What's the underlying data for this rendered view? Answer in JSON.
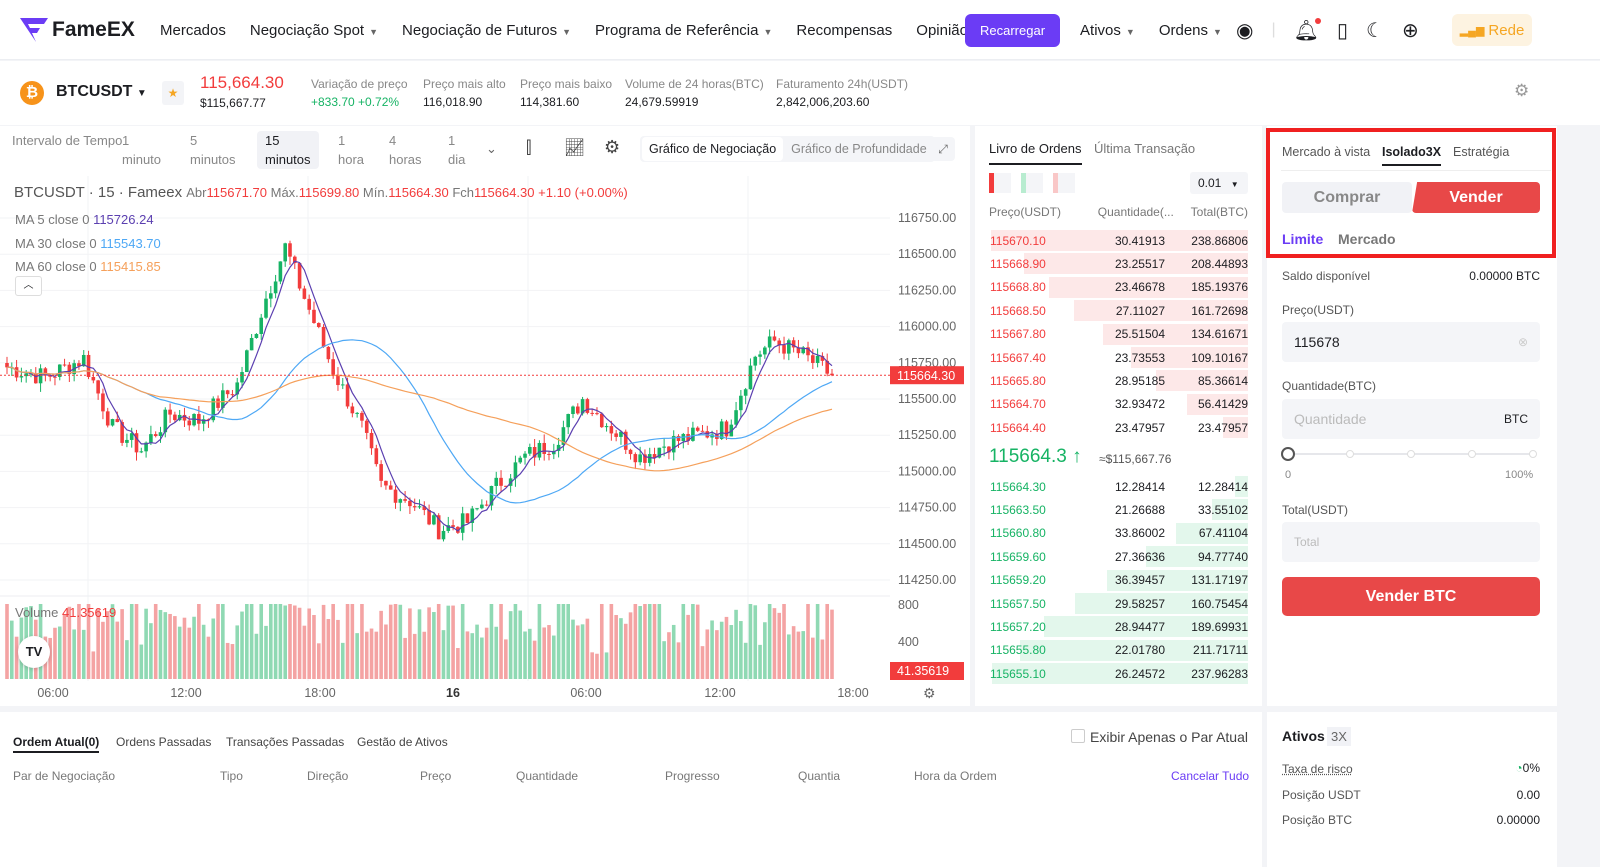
{
  "header": {
    "brand": "FameEX",
    "nav": [
      "Mercados",
      "Negociação Spot",
      "Negociação de Futuros",
      "Programa de Referência",
      "Recompensas",
      "Opinião"
    ],
    "recharge": "Recarregar",
    "assets": "Ativos",
    "orders": "Ordens",
    "network": "Rede"
  },
  "ticker": {
    "pair": "BTCUSDT",
    "price": "115,664.30",
    "price_usd": "$115,667.77",
    "stats": [
      {
        "label": "Variação de preço",
        "value": "+833.70 +0.72%"
      },
      {
        "label": "Preço mais alto",
        "value": "116,018.90"
      },
      {
        "label": "Preço mais baixo",
        "value": "114,381.60"
      },
      {
        "label": "Volume de 24 horas(BTC)",
        "value": "24,679.59919"
      },
      {
        "label": "Faturamento 24h(USDT)",
        "value": "2,842,006,203.60"
      }
    ]
  },
  "chart_toolbar": {
    "interval_label": "Intervalo de Tempo",
    "intervals": [
      [
        "1",
        "minuto"
      ],
      [
        "5",
        "minutos"
      ],
      [
        "15",
        "minutos"
      ],
      [
        "1",
        "hora"
      ],
      [
        "4",
        "horas"
      ],
      [
        "1",
        "dia"
      ]
    ],
    "active_interval": 2,
    "trading_chart": "Gráfico de Negociação",
    "depth_chart": "Gráfico de Profundidade"
  },
  "chart_data": {
    "type": "candlestick",
    "title": "BTCUSDT · 15 · Fameex",
    "ohlc": {
      "o_label": "Abr",
      "o": "115671.70",
      "h_label": "Máx.",
      "h": "115699.80",
      "l_label": "Mín.",
      "l": "115664.30",
      "c_label": "Fch",
      "c": "115664.30",
      "change": "+1.10 (+0.00%)"
    },
    "ma": [
      {
        "label": "MA 5 close 0",
        "value": "115726.24",
        "color": "#5b3fb0"
      },
      {
        "label": "MA 30 close 0",
        "value": "115543.70",
        "color": "#4ea8f5"
      },
      {
        "label": "MA 60 close 0",
        "value": "115415.85",
        "color": "#f5a05b"
      }
    ],
    "y_ticks": [
      "116750.00",
      "116500.00",
      "116250.00",
      "116000.00",
      "115750.00",
      "115500.00",
      "115250.00",
      "115000.00",
      "114750.00",
      "114500.00",
      "114250.00"
    ],
    "ylim": [
      114250,
      116750
    ],
    "x_ticks": [
      "06:00",
      "12:00",
      "18:00",
      "16",
      "06:00",
      "12:00",
      "18:00"
    ],
    "last_price": "115664.30",
    "volume_label": "Volume",
    "volume_value": "41.35619",
    "volume_ticks": [
      "800",
      "400"
    ],
    "volume_last": "41.35619",
    "price_keypoints": [
      [
        0,
        115720
      ],
      [
        8,
        115650
      ],
      [
        16,
        115780
      ],
      [
        22,
        115300
      ],
      [
        28,
        115150
      ],
      [
        34,
        115400
      ],
      [
        40,
        115350
      ],
      [
        48,
        115600
      ],
      [
        54,
        116200
      ],
      [
        58,
        116550
      ],
      [
        62,
        116200
      ],
      [
        68,
        115700
      ],
      [
        74,
        115300
      ],
      [
        78,
        114900
      ],
      [
        84,
        114800
      ],
      [
        90,
        114600
      ],
      [
        96,
        114650
      ],
      [
        102,
        114900
      ],
      [
        108,
        115100
      ],
      [
        114,
        115200
      ],
      [
        120,
        115500
      ],
      [
        126,
        115300
      ],
      [
        132,
        115100
      ],
      [
        138,
        115200
      ],
      [
        144,
        115250
      ],
      [
        150,
        115300
      ],
      [
        156,
        115800
      ],
      [
        160,
        115900
      ],
      [
        166,
        115800
      ],
      [
        172,
        115664
      ]
    ]
  },
  "orderbook": {
    "tabs": [
      "Livro de Ordens",
      "Última Transação"
    ],
    "precision": "0.01",
    "headers": [
      "Preço(USDT)",
      "Quantidade(...",
      "Total(BTC)"
    ],
    "asks": [
      [
        "115670.10",
        "30.41913",
        "238.86806"
      ],
      [
        "115668.90",
        "23.25517",
        "208.44893"
      ],
      [
        "115668.80",
        "23.46678",
        "185.19376"
      ],
      [
        "115668.50",
        "27.11027",
        "161.72698"
      ],
      [
        "115667.80",
        "25.51504",
        "134.61671"
      ],
      [
        "115667.40",
        "23.73553",
        "109.10167"
      ],
      [
        "115665.80",
        "28.95185",
        "85.36614"
      ],
      [
        "115664.70",
        "32.93472",
        "56.41429"
      ],
      [
        "115664.40",
        "23.47957",
        "23.47957"
      ]
    ],
    "mid_price": "115664.3 ↑",
    "mid_usd": "≈$115,667.76",
    "bids": [
      [
        "115664.30",
        "12.28414",
        "12.28414"
      ],
      [
        "115663.50",
        "21.26688",
        "33.55102"
      ],
      [
        "115660.80",
        "33.86002",
        "67.41104"
      ],
      [
        "115659.60",
        "27.36636",
        "94.77740"
      ],
      [
        "115659.20",
        "36.39457",
        "131.17197"
      ],
      [
        "115657.50",
        "29.58257",
        "160.75454"
      ],
      [
        "115657.20",
        "28.94477",
        "189.69931"
      ],
      [
        "115655.80",
        "22.01780",
        "211.71711"
      ],
      [
        "115655.10",
        "26.24572",
        "237.96283"
      ]
    ]
  },
  "trade": {
    "tabs": [
      "Mercado à vista",
      "Isolado3X",
      "Estratégia"
    ],
    "buy": "Comprar",
    "sell": "Vender",
    "types": [
      "Limite",
      "Mercado"
    ],
    "balance_label": "Saldo disponível",
    "balance": "0.00000 BTC",
    "price_label": "Preço(USDT)",
    "price": "115678",
    "qty_label": "Quantidade(BTC)",
    "qty_placeholder": "Quantidade",
    "qty_unit": "BTC",
    "slider_min": "0",
    "slider_max": "100%",
    "slider_value": 0,
    "total_label": "Total(USDT)",
    "total_placeholder": "Total",
    "submit": "Vender BTC"
  },
  "bottom": {
    "tabs": [
      "Ordem Atual(0)",
      "Ordens Passadas",
      "Transações Passadas",
      "Gestão de Ativos"
    ],
    "only_pair": "Exibir Apenas o Par Atual",
    "cols": [
      "Par de Negociação",
      "Tipo",
      "Direção",
      "Preço",
      "Quantidade",
      "Progresso",
      "Quantia",
      "Hora da Ordem"
    ],
    "cancel_all": "Cancelar Tudo"
  },
  "assets": {
    "title": "Ativos",
    "leverage": "3X",
    "rows": [
      [
        "Taxa de risco",
        "0%"
      ],
      [
        "Posição USDT",
        "0.00"
      ],
      [
        "Posição BTC",
        "0.00000"
      ]
    ]
  }
}
